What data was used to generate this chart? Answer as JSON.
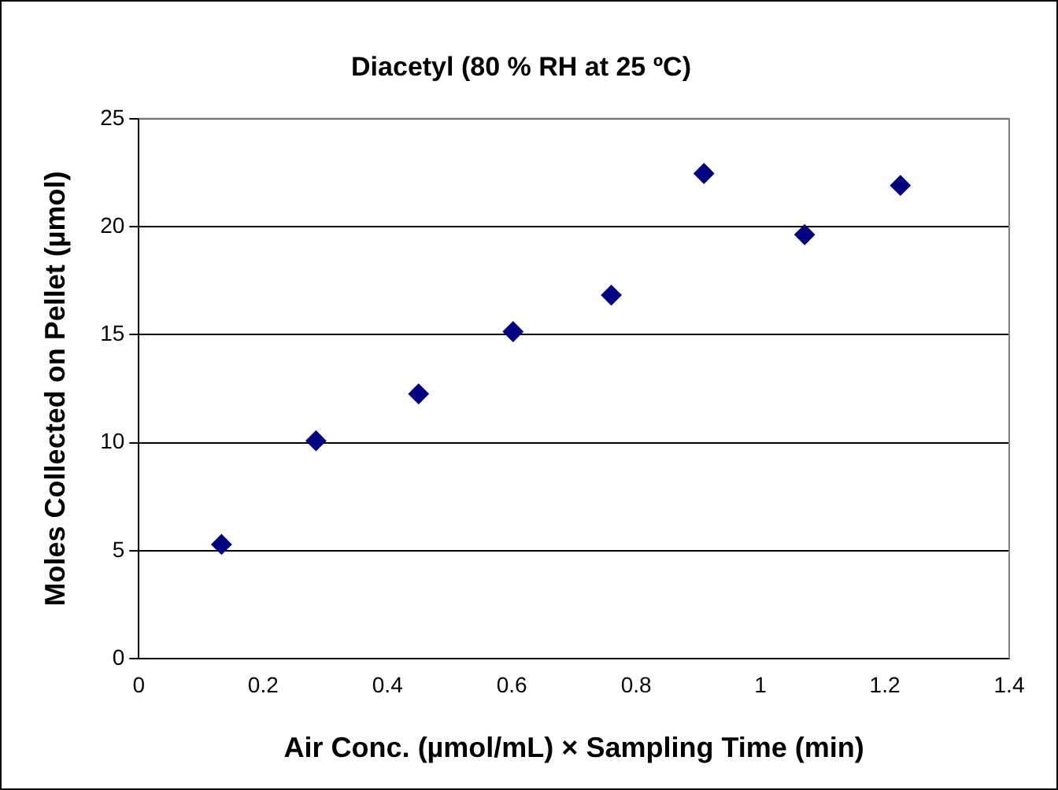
{
  "chart_data": {
    "type": "scatter",
    "title": "Diacetyl (80 % RH at 25 ºC)",
    "xlabel": "Air Conc. (µmol/mL) × Sampling Time (min)",
    "ylabel": "Moles Collected on Pellet (µmol)",
    "x": [
      0.133,
      0.285,
      0.45,
      0.602,
      0.76,
      0.909,
      1.071,
      1.225
    ],
    "series": [
      {
        "color": "#000080",
        "values": [
          5.29,
          10.09,
          12.26,
          15.14,
          16.83,
          22.46,
          19.63,
          21.91
        ]
      }
    ],
    "xlim": [
      0,
      1.4
    ],
    "xticks": [
      0,
      0.2,
      0.4,
      0.6,
      0.8,
      1,
      1.2,
      1.4
    ],
    "ylim": [
      0,
      25
    ],
    "yticks": [
      0,
      5,
      10,
      15,
      20,
      25
    ],
    "grid": "y",
    "legend": false,
    "marker": "diamond"
  }
}
